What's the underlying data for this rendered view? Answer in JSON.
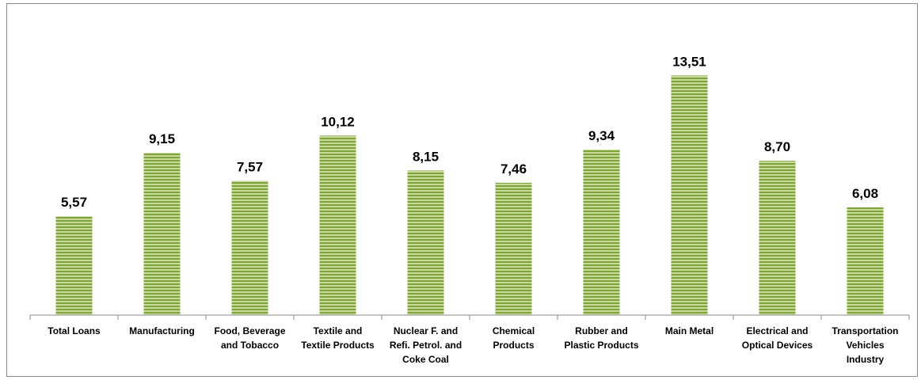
{
  "chart_data": {
    "type": "bar",
    "title": "",
    "xlabel": "",
    "ylabel": "",
    "categories": [
      [
        "Total Loans"
      ],
      [
        "Manufacturing"
      ],
      [
        "Food, Beverage",
        "and Tobacco"
      ],
      [
        "Textile and",
        "Textile Products"
      ],
      [
        "Nuclear F. and",
        "Refi. Petrol. and",
        "Coke Coal"
      ],
      [
        "Chemical",
        "Products"
      ],
      [
        "Rubber and",
        "Plastic Products"
      ],
      [
        "Main Metal"
      ],
      [
        "Electrical and",
        "Optical Devices"
      ],
      [
        "Transportation",
        "Vehicles",
        "Industry"
      ]
    ],
    "values": [
      5.57,
      9.15,
      7.57,
      10.12,
      8.15,
      7.46,
      9.34,
      13.51,
      8.7,
      6.08
    ],
    "value_labels": [
      "5,57",
      "9,15",
      "7,57",
      "10,12",
      "8,15",
      "7,46",
      "9,34",
      "13,51",
      "8,70",
      "6,08"
    ],
    "ylim": [
      0,
      16
    ],
    "grid": false,
    "legend": "none",
    "bar_color": "#7fa23a",
    "bar_stripe_color": "#c9db9a",
    "axis_color": "#8c8c8c"
  }
}
